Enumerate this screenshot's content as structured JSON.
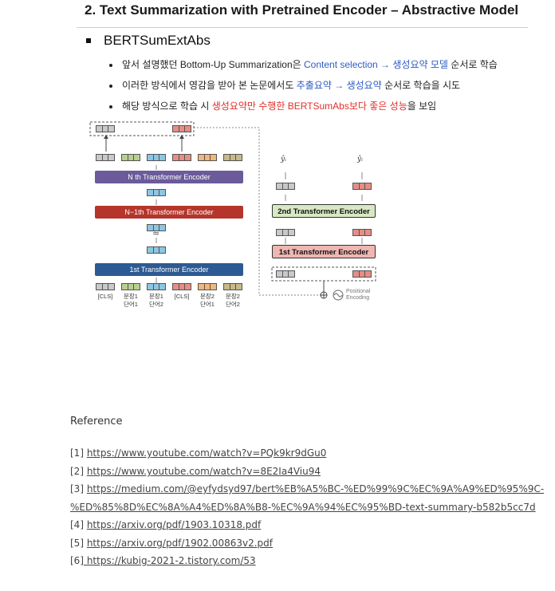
{
  "slide": {
    "title": "2. Text Summarization with Pretrained Encoder – Abstractive Model",
    "subheading": "BERTSumExtAbs",
    "bullets": [
      {
        "pre": "앞서 설명했던 Bottom-Up Summarization은 ",
        "hl": "Content selection → 생성요약 모델",
        "post": " 순서로 학습",
        "hl_color": "#2f5cc2"
      },
      {
        "pre": "이러한 방식에서 영감을 받아 본 논문에서도 ",
        "hl": "추출요약 → 생성요약",
        "post": " 순서로 학습을 시도",
        "hl_color": "#2f5cc2"
      },
      {
        "pre": "해당 방식으로 학습 시 ",
        "hl": "생성요약만 수행한 BERTSumAbs보다 좋은 성능",
        "post": "을 보임",
        "hl_color": "#e0302a"
      }
    ]
  },
  "diagram": {
    "encoders": {
      "n": "N th Transformer Encoder",
      "n1": "N−1th Transformer Encoder",
      "first": "1st Transformer Encoder",
      "dec2": "2nd Transformer Encoder",
      "dec1": "1st Transformer Encoder"
    },
    "colors": {
      "purple": "#6b5b9a",
      "darkred": "#b5352b",
      "navy": "#2d5a93",
      "green_box": "#d8e8c4",
      "pink_box": "#efb6b2"
    },
    "ellipsis": "≈",
    "yhat": "ŷᵢ",
    "tokens": [
      "[CLS]",
      "문장1\n단어1",
      "문장1\n단어2",
      "[CLS]",
      "문장2\n단어1",
      "문장2\n단어2"
    ],
    "positional_label": "Positional\nEncoding"
  },
  "references": {
    "heading": "Reference",
    "items": [
      {
        "num": "[1]",
        "url": "https://www.youtube.com/watch?v=PQk9kr9dGu0"
      },
      {
        "num": "[2]",
        "url": "https://www.youtube.com/watch?v=8E2Ia4Viu94"
      },
      {
        "num": "[3]",
        "url": "https://medium.com/@eyfydsyd97/bert%EB%A5%BC-%ED%99%9C%EC%9A%A9%ED%95%9C-"
      },
      {
        "num": "",
        "url": "%ED%85%8D%EC%8A%A4%ED%8A%B8-%EC%9A%94%EC%95%BD-text-summary-b582b5cc7d"
      },
      {
        "num": "[4]",
        "url": "https://arxiv.org/pdf/1903.10318.pdf"
      },
      {
        "num": "[5]",
        "url": "https://arxiv.org/pdf/1902.00863v2.pdf"
      },
      {
        "num": "[6]",
        "url": " https://kubig-2021-2.tistory.com/53"
      }
    ]
  }
}
